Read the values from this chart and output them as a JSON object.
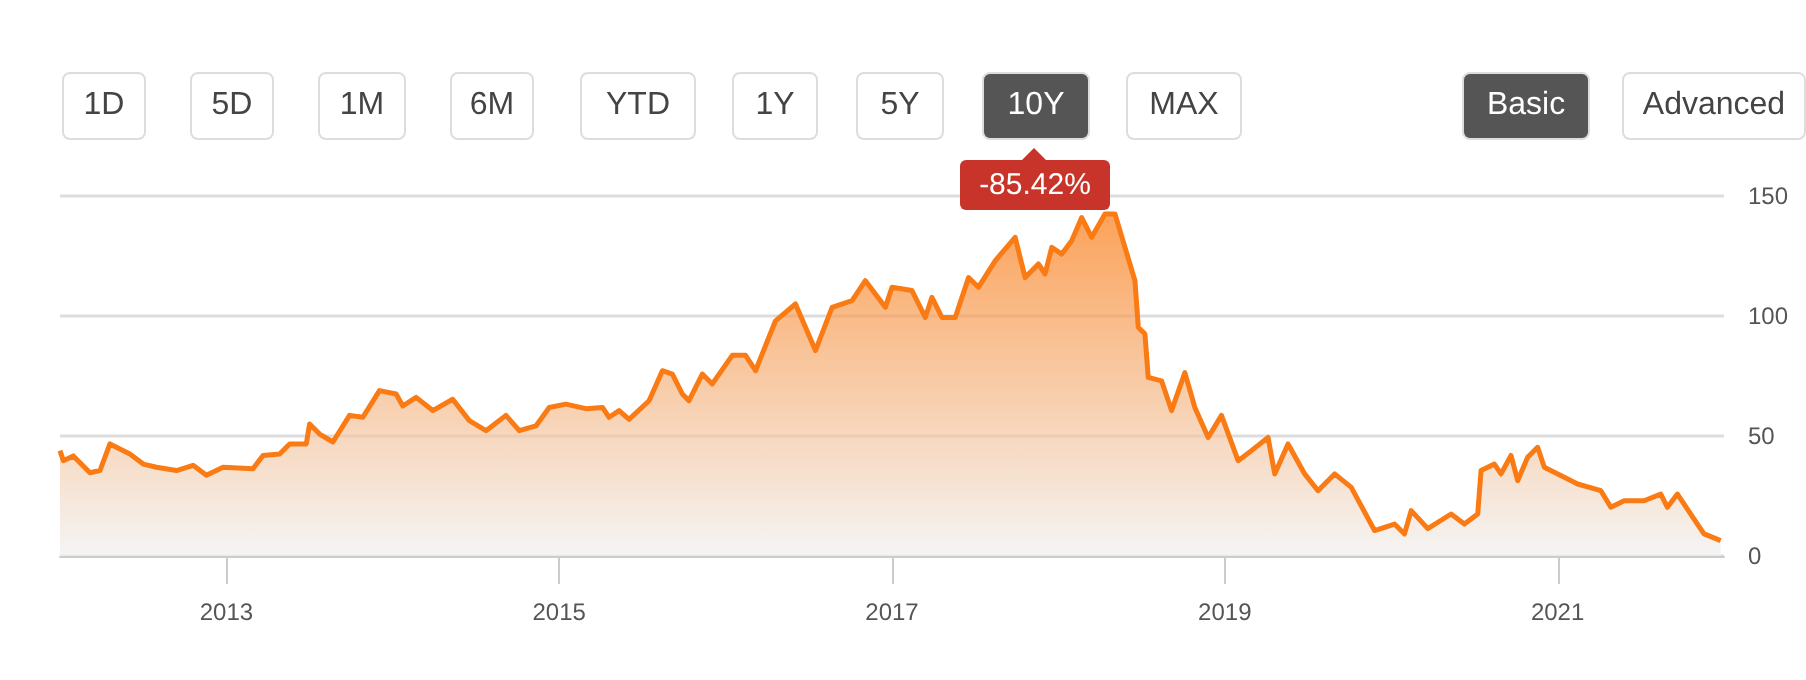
{
  "chart_data": {
    "type": "area",
    "annotations": [
      "1D",
      "5D",
      "1M",
      "6M",
      "YTD",
      "1Y",
      "5Y",
      "10Y",
      "MAX",
      "Basic",
      "Advanced",
      "-85.42%"
    ],
    "x": [
      2012.0,
      2012.02,
      2012.08,
      2012.18,
      2012.24,
      2012.3,
      2012.42,
      2012.5,
      2012.58,
      2012.7,
      2012.8,
      2012.88,
      2012.98,
      2013.16,
      2013.22,
      2013.32,
      2013.38,
      2013.48,
      2013.5,
      2013.56,
      2013.64,
      2013.74,
      2013.82,
      2013.92,
      2014.02,
      2014.06,
      2014.14,
      2014.24,
      2014.36,
      2014.46,
      2014.56,
      2014.68,
      2014.76,
      2014.86,
      2014.94,
      2015.04,
      2015.16,
      2015.26,
      2015.3,
      2015.36,
      2015.42,
      2015.54,
      2015.62,
      2015.68,
      2015.74,
      2015.78,
      2015.86,
      2015.92,
      2016.04,
      2016.12,
      2016.18,
      2016.3,
      2016.42,
      2016.54,
      2016.64,
      2016.76,
      2016.84,
      2016.96,
      2017.0,
      2017.12,
      2017.2,
      2017.24,
      2017.3,
      2017.38,
      2017.46,
      2017.52,
      2017.62,
      2017.74,
      2017.8,
      2017.88,
      2017.92,
      2017.96,
      2018.02,
      2018.08,
      2018.14,
      2018.2,
      2018.28,
      2018.34,
      2018.4,
      2018.46,
      2018.48,
      2018.52,
      2018.54,
      2018.62,
      2018.68,
      2018.76,
      2018.82,
      2018.9,
      2018.98,
      2019.08,
      2019.16,
      2019.26,
      2019.3,
      2019.38,
      2019.48,
      2019.56,
      2019.66,
      2019.76,
      2019.9,
      2020.02,
      2020.08,
      2020.12,
      2020.22,
      2020.36,
      2020.44,
      2020.52,
      2020.54,
      2020.62,
      2020.66,
      2020.72,
      2020.76,
      2020.82,
      2020.88,
      2020.92,
      2021.04,
      2021.12,
      2021.26,
      2021.32,
      2021.4,
      2021.52,
      2021.62,
      2021.66,
      2021.72,
      2021.84,
      2021.88,
      2021.98
    ],
    "series": [
      {
        "color": "#fa7b14",
        "values": [
          43.9,
          39.7,
          41.7,
          34.7,
          35.6,
          46.7,
          42.5,
          38.3,
          37,
          35.6,
          37.8,
          33.6,
          37,
          36.4,
          41.9,
          42.5,
          46.7,
          46.7,
          55,
          50.8,
          47.5,
          58.6,
          57.8,
          68.9,
          67.5,
          62.5,
          66.1,
          60.6,
          65.3,
          56.4,
          52.2,
          58.6,
          52.2,
          54.2,
          61.9,
          63.3,
          61.4,
          61.9,
          57.8,
          60.6,
          56.9,
          64.7,
          77.2,
          75.8,
          67.5,
          64.7,
          75.8,
          71.7,
          83.6,
          83.6,
          77.2,
          98,
          105,
          85.6,
          103.6,
          106.4,
          114.7,
          103.6,
          112,
          110.6,
          99.4,
          107.8,
          99.4,
          99.4,
          116,
          112,
          123,
          132.8,
          116,
          121.7,
          117.5,
          128.6,
          125.8,
          131.4,
          141,
          132.8,
          142.5,
          142.5,
          128.6,
          114.7,
          95.3,
          92.5,
          74.4,
          73,
          60.6,
          76.4,
          61.9,
          49.4,
          58.6,
          39.7,
          43.9,
          49.4,
          34.2,
          46.7,
          34.2,
          27.2,
          34.2,
          28.6,
          10.6,
          13.3,
          9.2,
          18.9,
          11.4,
          17.5,
          13.3,
          17.5,
          35.6,
          38.3,
          34.2,
          41.9,
          31.4,
          41.1,
          45.3,
          37,
          32.8,
          30,
          27.2,
          20.3,
          23,
          23,
          25.8,
          20.3,
          25.8,
          13.3,
          9.2,
          6.4
        ]
      }
    ],
    "xlim": [
      2012,
      2022
    ],
    "xticks": [
      2013,
      2015,
      2017,
      2019,
      2021
    ],
    "ylim": [
      0,
      150
    ],
    "yticks": [
      0,
      50,
      100,
      150
    ],
    "grid": "y"
  }
}
